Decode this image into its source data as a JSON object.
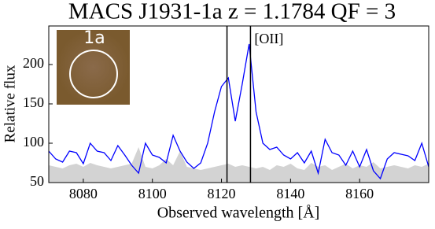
{
  "chart_data": {
    "type": "line",
    "title": "MACS J1931-1a z = 1.1784 QF = 3",
    "xlabel": "Observed wavelength  [Å]",
    "ylabel": "Relative flux",
    "inset_label": "1a",
    "annotation": "[OII]",
    "x": [
      8070,
      8072,
      8074,
      8076,
      8078,
      8080,
      8082,
      8084,
      8086,
      8088,
      8090,
      8092,
      8094,
      8096,
      8098,
      8100,
      8102,
      8104,
      8106,
      8108,
      8110,
      8112,
      8114,
      8116,
      8118,
      8120,
      8122,
      8124,
      8126,
      8128,
      8130,
      8132,
      8134,
      8136,
      8138,
      8140,
      8142,
      8144,
      8146,
      8148,
      8150,
      8152,
      8154,
      8156,
      8158,
      8160,
      8162,
      8164,
      8166,
      8168,
      8170,
      8172,
      8174,
      8176,
      8178,
      8180
    ],
    "series": [
      {
        "kind": "area",
        "color": "#d3d3d3",
        "values": [
          72,
          70,
          68,
          72,
          74,
          70,
          75,
          72,
          70,
          68,
          70,
          72,
          74,
          95,
          70,
          68,
          72,
          80,
          72,
          90,
          70,
          68,
          66,
          68,
          70,
          72,
          74,
          70,
          72,
          70,
          68,
          70,
          66,
          72,
          70,
          74,
          68,
          66,
          75,
          70,
          72,
          66,
          70,
          74,
          68,
          72,
          70,
          76,
          68,
          70,
          72,
          70,
          68,
          72,
          70,
          74
        ]
      },
      {
        "kind": "line",
        "color": "#0000ff",
        "values": [
          90,
          80,
          76,
          90,
          88,
          74,
          100,
          90,
          88,
          78,
          97,
          85,
          72,
          62,
          100,
          85,
          82,
          75,
          110,
          90,
          76,
          68,
          75,
          100,
          140,
          172,
          183,
          128,
          175,
          226,
          140,
          100,
          92,
          95,
          85,
          80,
          88,
          75,
          90,
          62,
          105,
          88,
          85,
          72,
          90,
          70,
          92,
          65,
          55,
          80,
          88,
          86,
          84,
          78,
          100,
          70
        ]
      }
    ],
    "vlines": [
      8121.6,
      8128.4
    ],
    "xlim": [
      8070,
      8180
    ],
    "xticks": [
      8080,
      8100,
      8120,
      8140,
      8160
    ],
    "ylim": [
      50,
      249
    ],
    "yticks": [
      50,
      100,
      150,
      200
    ]
  }
}
